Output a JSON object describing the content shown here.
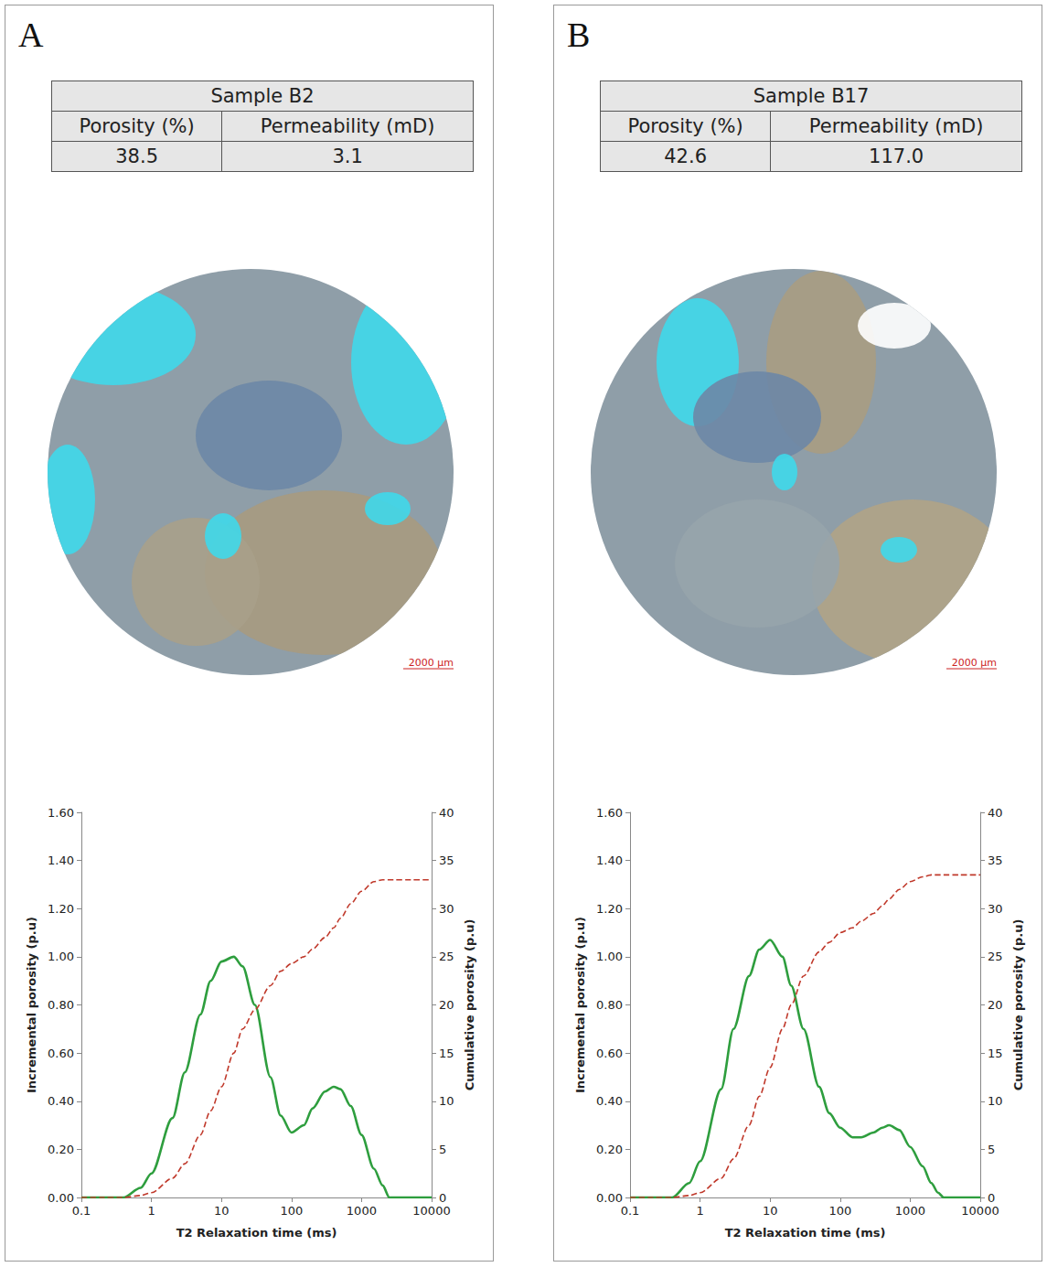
{
  "panels": [
    {
      "letter": "A",
      "table": {
        "title": "Sample B2",
        "header": [
          "Porosity (%)",
          "Permeability (mD)"
        ],
        "rows": [
          [
            "38.5",
            "3.1"
          ]
        ]
      },
      "scale_bar": "2000 μm"
    },
    {
      "letter": "B",
      "table": {
        "title": "Sample B17",
        "header": [
          "Porosity (%)",
          "Permeability (mD)"
        ],
        "rows": [
          [
            "42.6",
            "117.0"
          ]
        ]
      },
      "scale_bar": "2000 μm"
    }
  ],
  "chart_data": [
    {
      "type": "line",
      "xlabel": "T2 Relaxation time (ms)",
      "ylabel": "Incremental porosity (p.u)",
      "y2label": "Cumulative porosity (p.u)",
      "log": "x",
      "grid": false,
      "xlim": [
        0.1,
        10000
      ],
      "xticks": [
        0.1,
        1,
        10,
        100,
        1000,
        10000
      ],
      "ylim": [
        0,
        1.6
      ],
      "yticks": [
        {
          "value": 0,
          "label": "0.00"
        },
        {
          "value": 0.2,
          "label": "0.20"
        },
        {
          "value": 0.4,
          "label": "0.40"
        },
        {
          "value": 0.6,
          "label": "0.60"
        },
        {
          "value": 0.8,
          "label": "0.80"
        },
        {
          "value": 1.0,
          "label": "1.00"
        },
        {
          "value": 1.2,
          "label": "1.20"
        },
        {
          "value": 1.4,
          "label": "1.40"
        },
        {
          "value": 1.6,
          "label": "1.60"
        }
      ],
      "y2lim": [
        0,
        40
      ],
      "y2ticks": [
        0,
        5,
        10,
        15,
        20,
        25,
        30,
        35,
        40
      ],
      "x": [
        0.1,
        0.2,
        0.4,
        0.7,
        1,
        2,
        3,
        5,
        7,
        10,
        15,
        20,
        30,
        50,
        70,
        100,
        150,
        200,
        300,
        400,
        500,
        700,
        1000,
        1500,
        2000,
        2500,
        3000,
        5000,
        10000
      ],
      "series": [
        {
          "color": "#2e9e3e",
          "line_style": "solid",
          "values": [
            0,
            0,
            0,
            0.04,
            0.1,
            0.33,
            0.52,
            0.76,
            0.9,
            0.98,
            1.0,
            0.96,
            0.8,
            0.5,
            0.34,
            0.27,
            0.3,
            0.37,
            0.44,
            0.46,
            0.45,
            0.38,
            0.26,
            0.12,
            0.05,
            0,
            0,
            0,
            0
          ]
        },
        {
          "color": "#c0392b",
          "line_style": "dashed",
          "axis": "y2",
          "values": [
            0,
            0,
            0,
            0.2,
            0.5,
            2,
            3.5,
            6.5,
            9,
            11.5,
            15,
            17.5,
            19.5,
            22,
            23.5,
            24.3,
            25,
            25.8,
            27,
            28,
            29,
            30.5,
            31.8,
            32.8,
            33,
            33,
            33,
            33,
            33
          ]
        }
      ]
    },
    {
      "type": "line",
      "xlabel": "T2 Relaxation time (ms)",
      "ylabel": "Incremental porosity (p.u)",
      "y2label": "Cumulative porosity (p.u)",
      "log": "x",
      "grid": false,
      "xlim": [
        0.1,
        10000
      ],
      "xticks": [
        0.1,
        1,
        10,
        100,
        1000,
        10000
      ],
      "ylim": [
        0,
        1.6
      ],
      "yticks": [
        {
          "value": 0,
          "label": "0.00"
        },
        {
          "value": 0.2,
          "label": "0.20"
        },
        {
          "value": 0.4,
          "label": "0.40"
        },
        {
          "value": 0.6,
          "label": "0.60"
        },
        {
          "value": 0.8,
          "label": "0.80"
        },
        {
          "value": 1.0,
          "label": "1.00"
        },
        {
          "value": 1.2,
          "label": "1.20"
        },
        {
          "value": 1.4,
          "label": "1.40"
        },
        {
          "value": 1.6,
          "label": "1.60"
        }
      ],
      "y2lim": [
        0,
        40
      ],
      "y2ticks": [
        0,
        5,
        10,
        15,
        20,
        25,
        30,
        35,
        40
      ],
      "x": [
        0.1,
        0.2,
        0.4,
        0.7,
        1,
        2,
        3,
        5,
        7,
        10,
        15,
        20,
        30,
        50,
        70,
        100,
        150,
        200,
        300,
        400,
        500,
        700,
        1000,
        1500,
        2000,
        2500,
        3000,
        5000,
        10000
      ],
      "series": [
        {
          "color": "#2e9e3e",
          "line_style": "solid",
          "values": [
            0,
            0,
            0,
            0.06,
            0.15,
            0.45,
            0.7,
            0.92,
            1.03,
            1.07,
            1.0,
            0.88,
            0.7,
            0.46,
            0.35,
            0.29,
            0.25,
            0.25,
            0.27,
            0.29,
            0.3,
            0.28,
            0.21,
            0.13,
            0.06,
            0.02,
            0,
            0,
            0
          ]
        },
        {
          "color": "#c0392b",
          "line_style": "dashed",
          "axis": "y2",
          "values": [
            0,
            0,
            0,
            0.2,
            0.5,
            2,
            4,
            7.5,
            10.5,
            13.5,
            17.5,
            20,
            23,
            25.5,
            26.5,
            27.5,
            28,
            28.7,
            29.5,
            30.3,
            31,
            32,
            32.8,
            33.3,
            33.5,
            33.5,
            33.5,
            33.5,
            33.5
          ]
        }
      ]
    }
  ]
}
